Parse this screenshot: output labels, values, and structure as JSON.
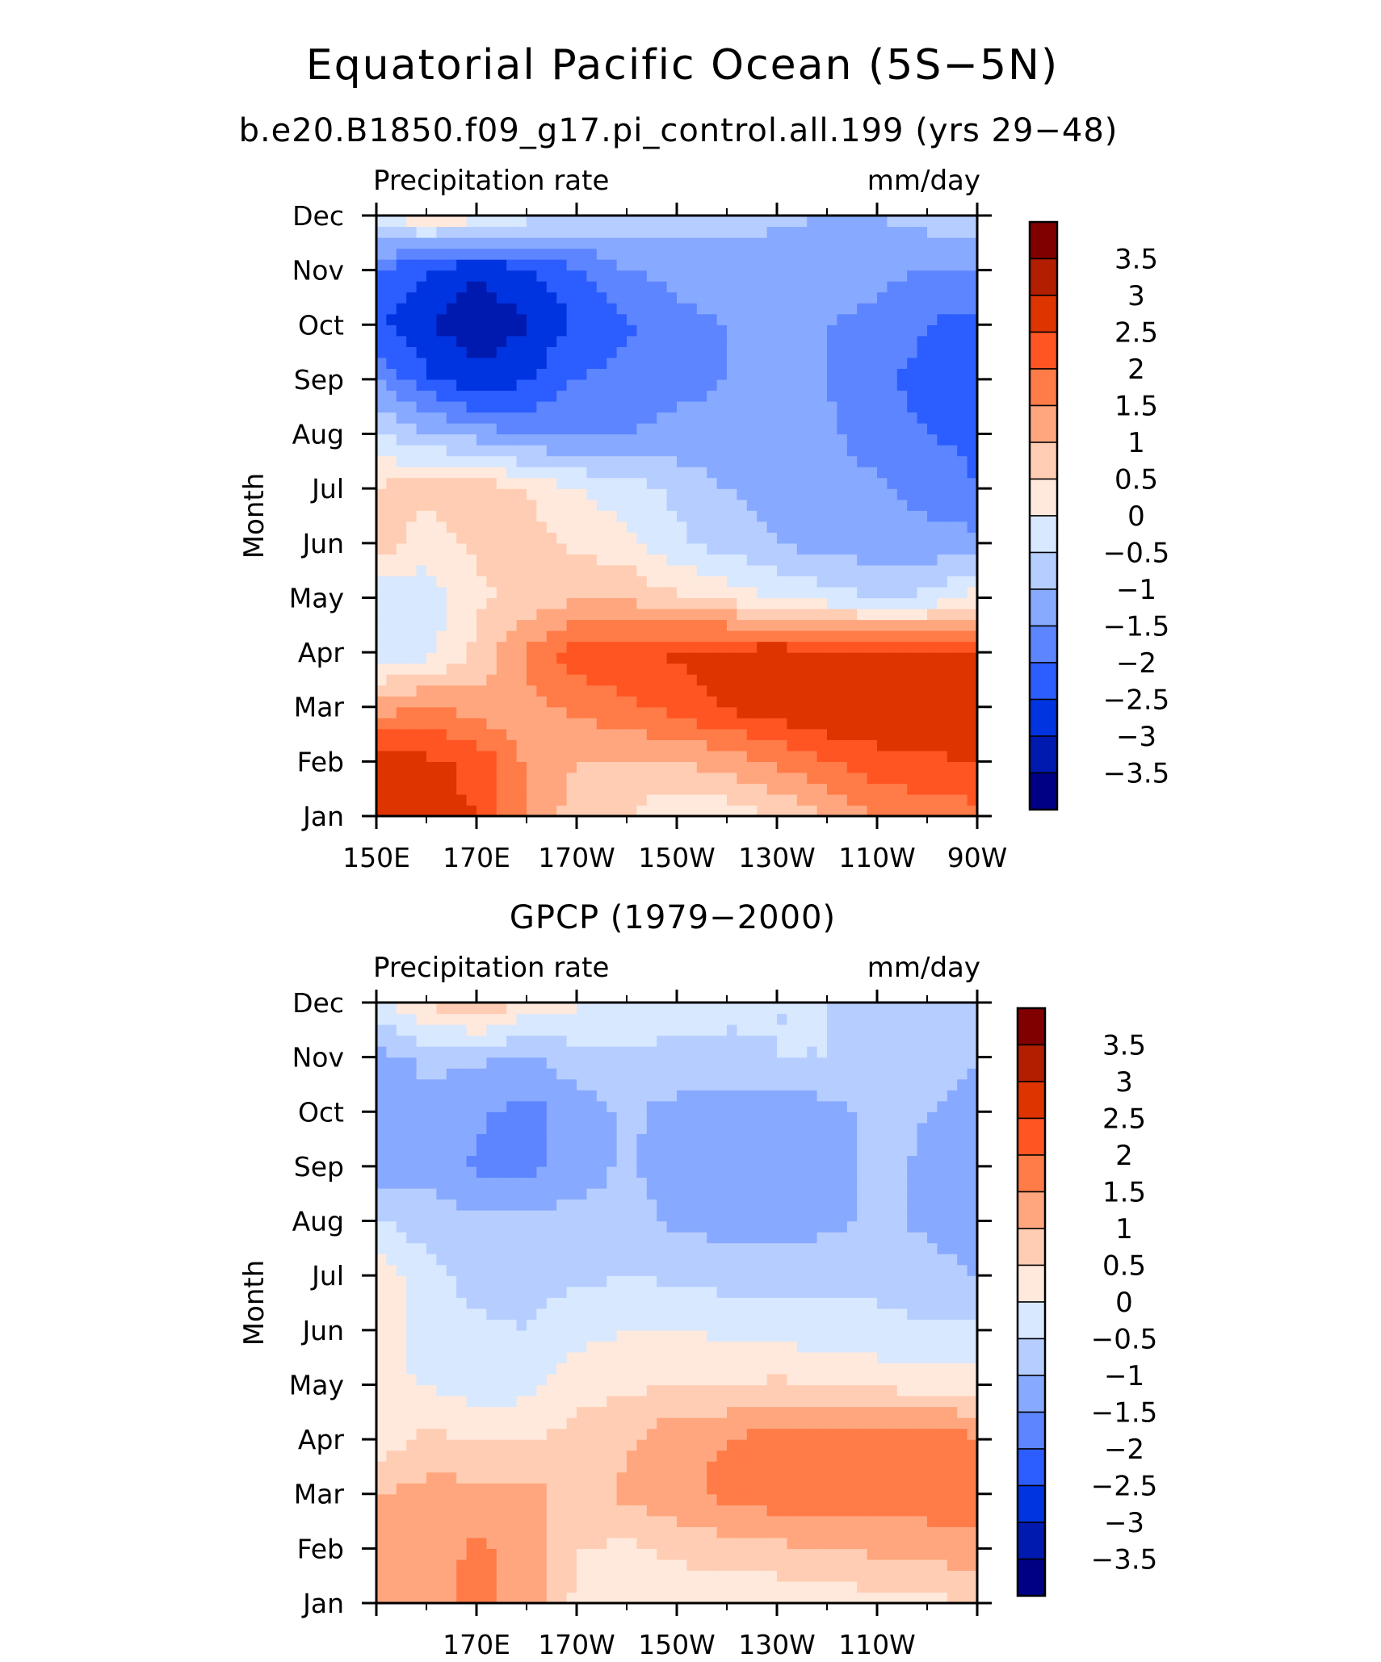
{
  "header": {
    "title": "Equatorial Pacific Ocean (5S−5N)",
    "subtitle": "b.e20.B1850.f09_g17.pi_control.all.199 (yrs 29−48)"
  },
  "colorbar": {
    "labels": [
      "3.5",
      "3",
      "2.5",
      "2",
      "1.5",
      "1",
      "0.5",
      "0",
      "−0.5",
      "−1",
      "−1.5",
      "−2",
      "−2.5",
      "−3",
      "−3.5"
    ],
    "colors": [
      "#800000",
      "#b21e00",
      "#de3400",
      "#ff5522",
      "#ff7b47",
      "#ffa67e",
      "#ffcdb3",
      "#ffe9dc",
      "#d7e8ff",
      "#b6cdff",
      "#87a9ff",
      "#5c85ff",
      "#2c5dff",
      "#0034e0",
      "#001ab0",
      "#000085"
    ]
  },
  "chart_data": [
    {
      "type": "heatmap",
      "title": "",
      "left_label": "Precipitation rate",
      "right_label": "mm/day",
      "ylabel": "Month",
      "xticks": [
        "150E",
        "170E",
        "170W",
        "150W",
        "130W",
        "110W",
        "90W"
      ],
      "yticks": [
        "Jan",
        "Feb",
        "Mar",
        "Apr",
        "May",
        "Jun",
        "Jul",
        "Aug",
        "Sep",
        "Oct",
        "Nov",
        "Dec"
      ],
      "x": [
        150,
        160,
        170,
        180,
        190,
        200,
        210,
        220,
        230,
        240,
        250,
        260,
        270
      ],
      "y": [
        1,
        2,
        3,
        4,
        5,
        6,
        7,
        8,
        9,
        10,
        11,
        12
      ],
      "levels": [
        -3.5,
        -3,
        -2.5,
        -2,
        -1.5,
        -1,
        -0.5,
        0,
        0.5,
        1,
        1.5,
        2,
        2.5,
        3,
        3.5
      ],
      "values": [
        [
          3.0,
          2.6,
          2.5,
          1.4,
          0.8,
          0.5,
          0.1,
          0.2,
          0.5,
          1.0,
          1.5,
          1.7,
          1.8
        ],
        [
          2.8,
          2.6,
          2.4,
          1.4,
          1.0,
          0.9,
          1.0,
          1.2,
          1.6,
          2.0,
          2.3,
          2.4,
          2.5
        ],
        [
          1.2,
          1.6,
          1.2,
          1.3,
          1.6,
          1.9,
          2.2,
          2.6,
          2.8,
          3.0,
          3.0,
          3.0,
          2.9
        ],
        [
          -0.3,
          -0.2,
          0.6,
          1.6,
          2.3,
          2.4,
          2.6,
          2.7,
          2.8,
          2.7,
          2.6,
          2.6,
          2.5
        ],
        [
          -0.4,
          -0.3,
          0.4,
          0.6,
          0.9,
          0.9,
          0.6,
          0.3,
          0.0,
          -0.3,
          -0.5,
          -0.4,
          0.3
        ],
        [
          0.8,
          0.2,
          0.6,
          0.7,
          0.4,
          0.2,
          -0.4,
          -0.7,
          -1.0,
          -1.2,
          -1.3,
          -1.3,
          -1.3
        ],
        [
          0.6,
          0.7,
          0.8,
          0.5,
          0.0,
          -0.3,
          -0.6,
          -1.0,
          -1.2,
          -1.4,
          -1.4,
          -1.7,
          -2.0
        ],
        [
          -0.5,
          -0.9,
          -1.2,
          -1.6,
          -1.5,
          -1.5,
          -1.4,
          -1.4,
          -1.4,
          -1.4,
          -1.7,
          -2.0,
          -2.1
        ],
        [
          -1.5,
          -2.4,
          -2.9,
          -2.5,
          -2.0,
          -1.8,
          -1.6,
          -1.5,
          -1.5,
          -1.5,
          -1.9,
          -2.2,
          -2.2
        ],
        [
          -2.4,
          -3.0,
          -3.3,
          -3.1,
          -2.4,
          -2.1,
          -1.6,
          -1.5,
          -1.5,
          -1.5,
          -1.6,
          -2.0,
          -2.2
        ],
        [
          -2.0,
          -2.5,
          -3.0,
          -2.6,
          -2.1,
          -1.5,
          -1.4,
          -1.3,
          -1.3,
          -1.3,
          -1.4,
          -1.5,
          -1.5
        ],
        [
          0.0,
          0.4,
          0.3,
          -0.3,
          -0.5,
          -0.6,
          -0.7,
          -0.8,
          -0.9,
          -1.0,
          -1.0,
          -0.8,
          -0.5
        ]
      ]
    },
    {
      "type": "heatmap",
      "title": "GPCP (1979−2000)",
      "left_label": "Precipitation rate",
      "right_label": "mm/day",
      "ylabel": "Month",
      "xticks": [
        "",
        "170E",
        "170W",
        "150W",
        "130W",
        "110W",
        ""
      ],
      "yticks": [
        "Jan",
        "Feb",
        "Mar",
        "Apr",
        "May",
        "Jun",
        "Jul",
        "Aug",
        "Sep",
        "Oct",
        "Nov",
        "Dec"
      ],
      "x": [
        150,
        160,
        170,
        180,
        190,
        200,
        210,
        220,
        230,
        240,
        250,
        260,
        270
      ],
      "y": [
        1,
        2,
        3,
        4,
        5,
        6,
        7,
        8,
        9,
        10,
        11,
        12
      ],
      "levels": [
        -3.5,
        -3,
        -2.5,
        -2,
        -1.5,
        -1,
        -0.5,
        0,
        0.5,
        1,
        1.5,
        2,
        2.5,
        3,
        3.5
      ],
      "values": [
        [
          1.2,
          1.3,
          1.7,
          1.3,
          0.4,
          0.2,
          0.2,
          0.1,
          0.1,
          0.2,
          0.3,
          0.3,
          0.6
        ],
        [
          1.3,
          1.2,
          1.6,
          1.3,
          0.5,
          0.4,
          0.6,
          0.8,
          0.9,
          1.0,
          1.1,
          1.2,
          1.4
        ],
        [
          1.0,
          1.2,
          1.2,
          1.2,
          0.8,
          1.1,
          1.4,
          1.6,
          1.8,
          1.8,
          1.7,
          1.8,
          1.7
        ],
        [
          0.2,
          0.6,
          0.5,
          0.5,
          0.7,
          0.9,
          1.4,
          1.5,
          1.8,
          1.9,
          1.7,
          1.9,
          1.6
        ],
        [
          0.1,
          0.0,
          -0.3,
          -0.2,
          0.3,
          0.4,
          0.5,
          0.5,
          0.6,
          0.5,
          0.4,
          0.3,
          0.2
        ],
        [
          0.2,
          -0.2,
          -0.4,
          -0.5,
          -0.2,
          0.0,
          0.0,
          -0.1,
          -0.2,
          -0.3,
          -0.4,
          -0.4,
          -0.3
        ],
        [
          0.4,
          -0.3,
          -0.7,
          -0.7,
          -0.6,
          -0.5,
          -0.6,
          -0.7,
          -0.7,
          -0.7,
          -0.6,
          -0.8,
          -1.0
        ],
        [
          -0.4,
          -0.8,
          -0.9,
          -0.9,
          -0.8,
          -0.8,
          -1.1,
          -1.2,
          -1.2,
          -1.1,
          -0.9,
          -1.1,
          -1.3
        ],
        [
          -1.3,
          -1.1,
          -1.6,
          -1.6,
          -1.3,
          -0.9,
          -1.3,
          -1.4,
          -1.5,
          -1.3,
          -0.8,
          -1.1,
          -1.3
        ],
        [
          -1.3,
          -1.1,
          -1.4,
          -1.7,
          -1.3,
          -0.9,
          -1.2,
          -1.3,
          -1.3,
          -1.2,
          -0.9,
          -1.0,
          -1.2
        ],
        [
          -1.2,
          -0.9,
          -0.9,
          -1.1,
          -0.7,
          -0.6,
          -0.6,
          -0.6,
          -0.5,
          -0.5,
          -0.6,
          -0.8,
          -1.0
        ],
        [
          -0.2,
          0.6,
          1.0,
          0.4,
          0.1,
          -0.2,
          -0.3,
          -0.4,
          -0.5,
          -0.5,
          -0.5,
          -0.5,
          -0.5
        ]
      ]
    }
  ]
}
